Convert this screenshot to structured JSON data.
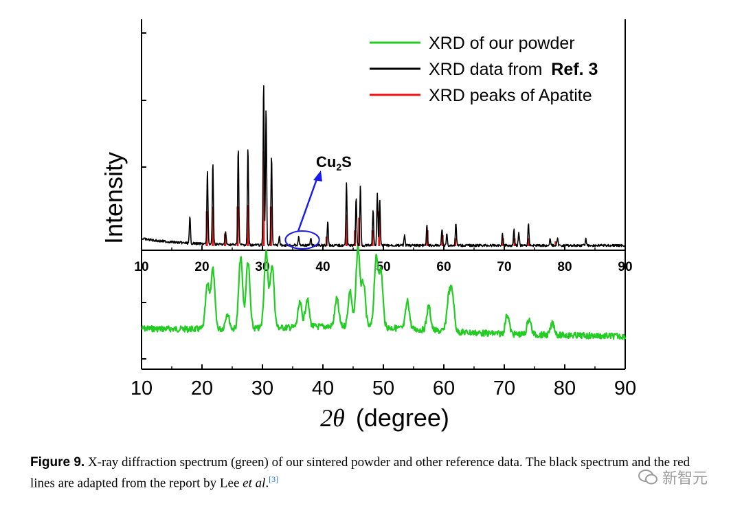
{
  "chart_data": {
    "type": "line",
    "xlabel_symbol": "2θ",
    "xlabel_unit": "(degree)",
    "ylabel": "Intensity",
    "xlim": [
      10,
      90
    ],
    "x_ticks": [
      "10",
      "20",
      "30",
      "40",
      "50",
      "60",
      "70",
      "80",
      "90"
    ],
    "grid": false,
    "legend_position": "top-right",
    "series": [
      {
        "name": "XRD of our powder",
        "color": "#22cc22",
        "panel": "lower",
        "peaks": [
          [
            20.9,
            0.55
          ],
          [
            21.8,
            0.75
          ],
          [
            24.2,
            0.2
          ],
          [
            26.4,
            0.9
          ],
          [
            27.6,
            0.85
          ],
          [
            30.6,
            0.95
          ],
          [
            31.6,
            0.8
          ],
          [
            36.2,
            0.3
          ],
          [
            37.4,
            0.35
          ],
          [
            42.3,
            0.35
          ],
          [
            44.5,
            0.45
          ],
          [
            45.8,
            1.0
          ],
          [
            46.7,
            0.55
          ],
          [
            48.8,
            0.85
          ],
          [
            49.6,
            0.7
          ],
          [
            54.0,
            0.35
          ],
          [
            57.5,
            0.3
          ],
          [
            60.8,
            0.4
          ],
          [
            61.4,
            0.45
          ],
          [
            70.5,
            0.25
          ],
          [
            74.1,
            0.2
          ],
          [
            78.0,
            0.15
          ]
        ]
      },
      {
        "name_prefix": "XRD data from ",
        "name_bold": "Ref. 3",
        "color": "#000000",
        "panel": "upper",
        "peaks": [
          [
            18.0,
            0.16
          ],
          [
            20.9,
            0.45
          ],
          [
            21.8,
            0.5
          ],
          [
            23.9,
            0.08
          ],
          [
            26.0,
            0.6
          ],
          [
            27.6,
            0.6
          ],
          [
            30.2,
            1.0
          ],
          [
            30.6,
            0.85
          ],
          [
            31.5,
            0.55
          ],
          [
            32.8,
            0.05
          ],
          [
            36.0,
            0.05
          ],
          [
            38.0,
            0.04
          ],
          [
            40.8,
            0.15
          ],
          [
            43.9,
            0.39
          ],
          [
            45.5,
            0.3
          ],
          [
            46.2,
            0.37
          ],
          [
            48.3,
            0.22
          ],
          [
            49.0,
            0.32
          ],
          [
            49.4,
            0.29
          ],
          [
            53.5,
            0.06
          ],
          [
            57.2,
            0.12
          ],
          [
            59.7,
            0.1
          ],
          [
            60.5,
            0.07
          ],
          [
            62.0,
            0.14
          ],
          [
            69.7,
            0.07
          ],
          [
            71.6,
            0.1
          ],
          [
            72.4,
            0.08
          ],
          [
            74.0,
            0.13
          ],
          [
            77.6,
            0.04
          ],
          [
            78.8,
            0.04
          ],
          [
            83.5,
            0.04
          ]
        ]
      },
      {
        "name": "XRD peaks of Apatite",
        "color": "#ee1111",
        "panel": "upper",
        "peaks": [
          [
            20.8,
            0.22
          ],
          [
            21.8,
            0.25
          ],
          [
            23.8,
            0.08
          ],
          [
            25.9,
            0.25
          ],
          [
            27.6,
            0.26
          ],
          [
            30.2,
            0.6
          ],
          [
            31.4,
            0.25
          ],
          [
            40.6,
            0.06
          ],
          [
            43.9,
            0.2
          ],
          [
            45.3,
            0.1
          ],
          [
            46.0,
            0.18
          ],
          [
            48.2,
            0.1
          ],
          [
            49.3,
            0.22
          ],
          [
            57.3,
            0.1
          ],
          [
            59.8,
            0.07
          ],
          [
            61.9,
            0.05
          ],
          [
            69.8,
            0.05
          ],
          [
            71.7,
            0.05
          ],
          [
            74.0,
            0.05
          ],
          [
            78.5,
            0.03
          ]
        ]
      }
    ],
    "annotation": {
      "text": "Cu",
      "subscript": "2",
      "suffix": "S",
      "region_x": [
        33.8,
        39.4
      ]
    }
  },
  "caption": {
    "label": "Figure 9.",
    "text_1": "X-ray diffraction spectrum (green) of our sintered powder and other reference data. The black spectrum and the red lines are adapted from the report by Lee ",
    "text_italic": "et al",
    "text_2": ".",
    "ref": "[3]"
  },
  "watermark": {
    "text": "新智元"
  },
  "colors": {
    "annotation_blue": "#1a1aee",
    "axis": "#000000"
  }
}
